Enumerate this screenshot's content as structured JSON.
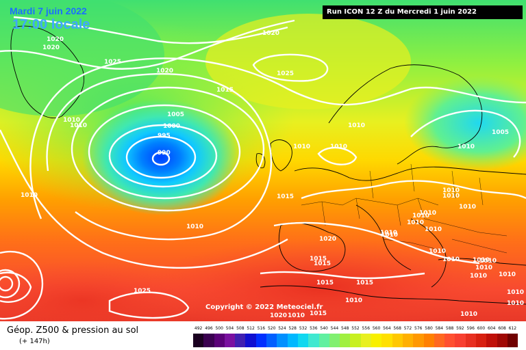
{
  "header": {
    "date": "Mardi 7 juin 2022",
    "time": "17:00 locale",
    "run": "Run ICON 12 Z du Mercredi 1 juin 2022"
  },
  "copyright": "Copyright © 2022 Meteociel.fr",
  "footer": {
    "title": "Géop. Z500 & pression au sol",
    "subtitle": "(+ 147h)"
  },
  "legend": {
    "values": [
      "492",
      "496",
      "500",
      "504",
      "508",
      "512",
      "516",
      "520",
      "524",
      "528",
      "532",
      "536",
      "540",
      "544",
      "548",
      "552",
      "556",
      "560",
      "564",
      "568",
      "572",
      "576",
      "580",
      "584",
      "588",
      "592",
      "596",
      "600",
      "604",
      "608",
      "612"
    ],
    "colors": [
      "#1a0020",
      "#3a0050",
      "#5a0078",
      "#7a10a0",
      "#4020b0",
      "#1010d0",
      "#0030ff",
      "#0060ff",
      "#0090ff",
      "#00b8ff",
      "#10d8f0",
      "#40e8d0",
      "#60f0a0",
      "#80f070",
      "#a0f040",
      "#c8f020",
      "#e8f020",
      "#f8f000",
      "#ffe000",
      "#ffc800",
      "#ffb000",
      "#ff9800",
      "#ff8000",
      "#ff6820",
      "#ff5030",
      "#f84030",
      "#e83020",
      "#d82010",
      "#c01008",
      "#a00804",
      "#700000"
    ]
  },
  "isobar_labels": [
    {
      "text": "1020"
    },
    {
      "text": "1020"
    },
    {
      "text": "1025"
    },
    {
      "text": "1020"
    },
    {
      "text": "1015"
    },
    {
      "text": "1025"
    },
    {
      "text": "1010"
    },
    {
      "text": "1010"
    },
    {
      "text": "1005"
    },
    {
      "text": "1000"
    },
    {
      "text": "995"
    },
    {
      "text": "990"
    },
    {
      "text": "1020"
    },
    {
      "text": "1010"
    },
    {
      "text": "1010"
    },
    {
      "text": "1010"
    },
    {
      "text": "1015"
    },
    {
      "text": "1010"
    },
    {
      "text": "1005"
    },
    {
      "text": "1010"
    },
    {
      "text": "1010"
    },
    {
      "text": "1010"
    },
    {
      "text": "1010"
    },
    {
      "text": "1010"
    },
    {
      "text": "1010"
    },
    {
      "text": "1010"
    },
    {
      "text": "1020"
    },
    {
      "text": "1015"
    },
    {
      "text": "1015"
    },
    {
      "text": "1010"
    },
    {
      "text": "1015"
    },
    {
      "text": "1015"
    },
    {
      "text": "1010"
    },
    {
      "text": "1025"
    },
    {
      "text": "1010"
    },
    {
      "text": "1015"
    },
    {
      "text": "1020"
    },
    {
      "text": "1010"
    },
    {
      "text": "1010"
    },
    {
      "text": "1010"
    },
    {
      "text": "1010"
    },
    {
      "text": "1010"
    },
    {
      "text": "1010"
    },
    {
      "text": "1010"
    },
    {
      "text": "1010"
    },
    {
      "text": "1010"
    },
    {
      "text": "1010"
    },
    {
      "text": "1010"
    },
    {
      "text": "1010"
    },
    {
      "text": "1010"
    }
  ]
}
